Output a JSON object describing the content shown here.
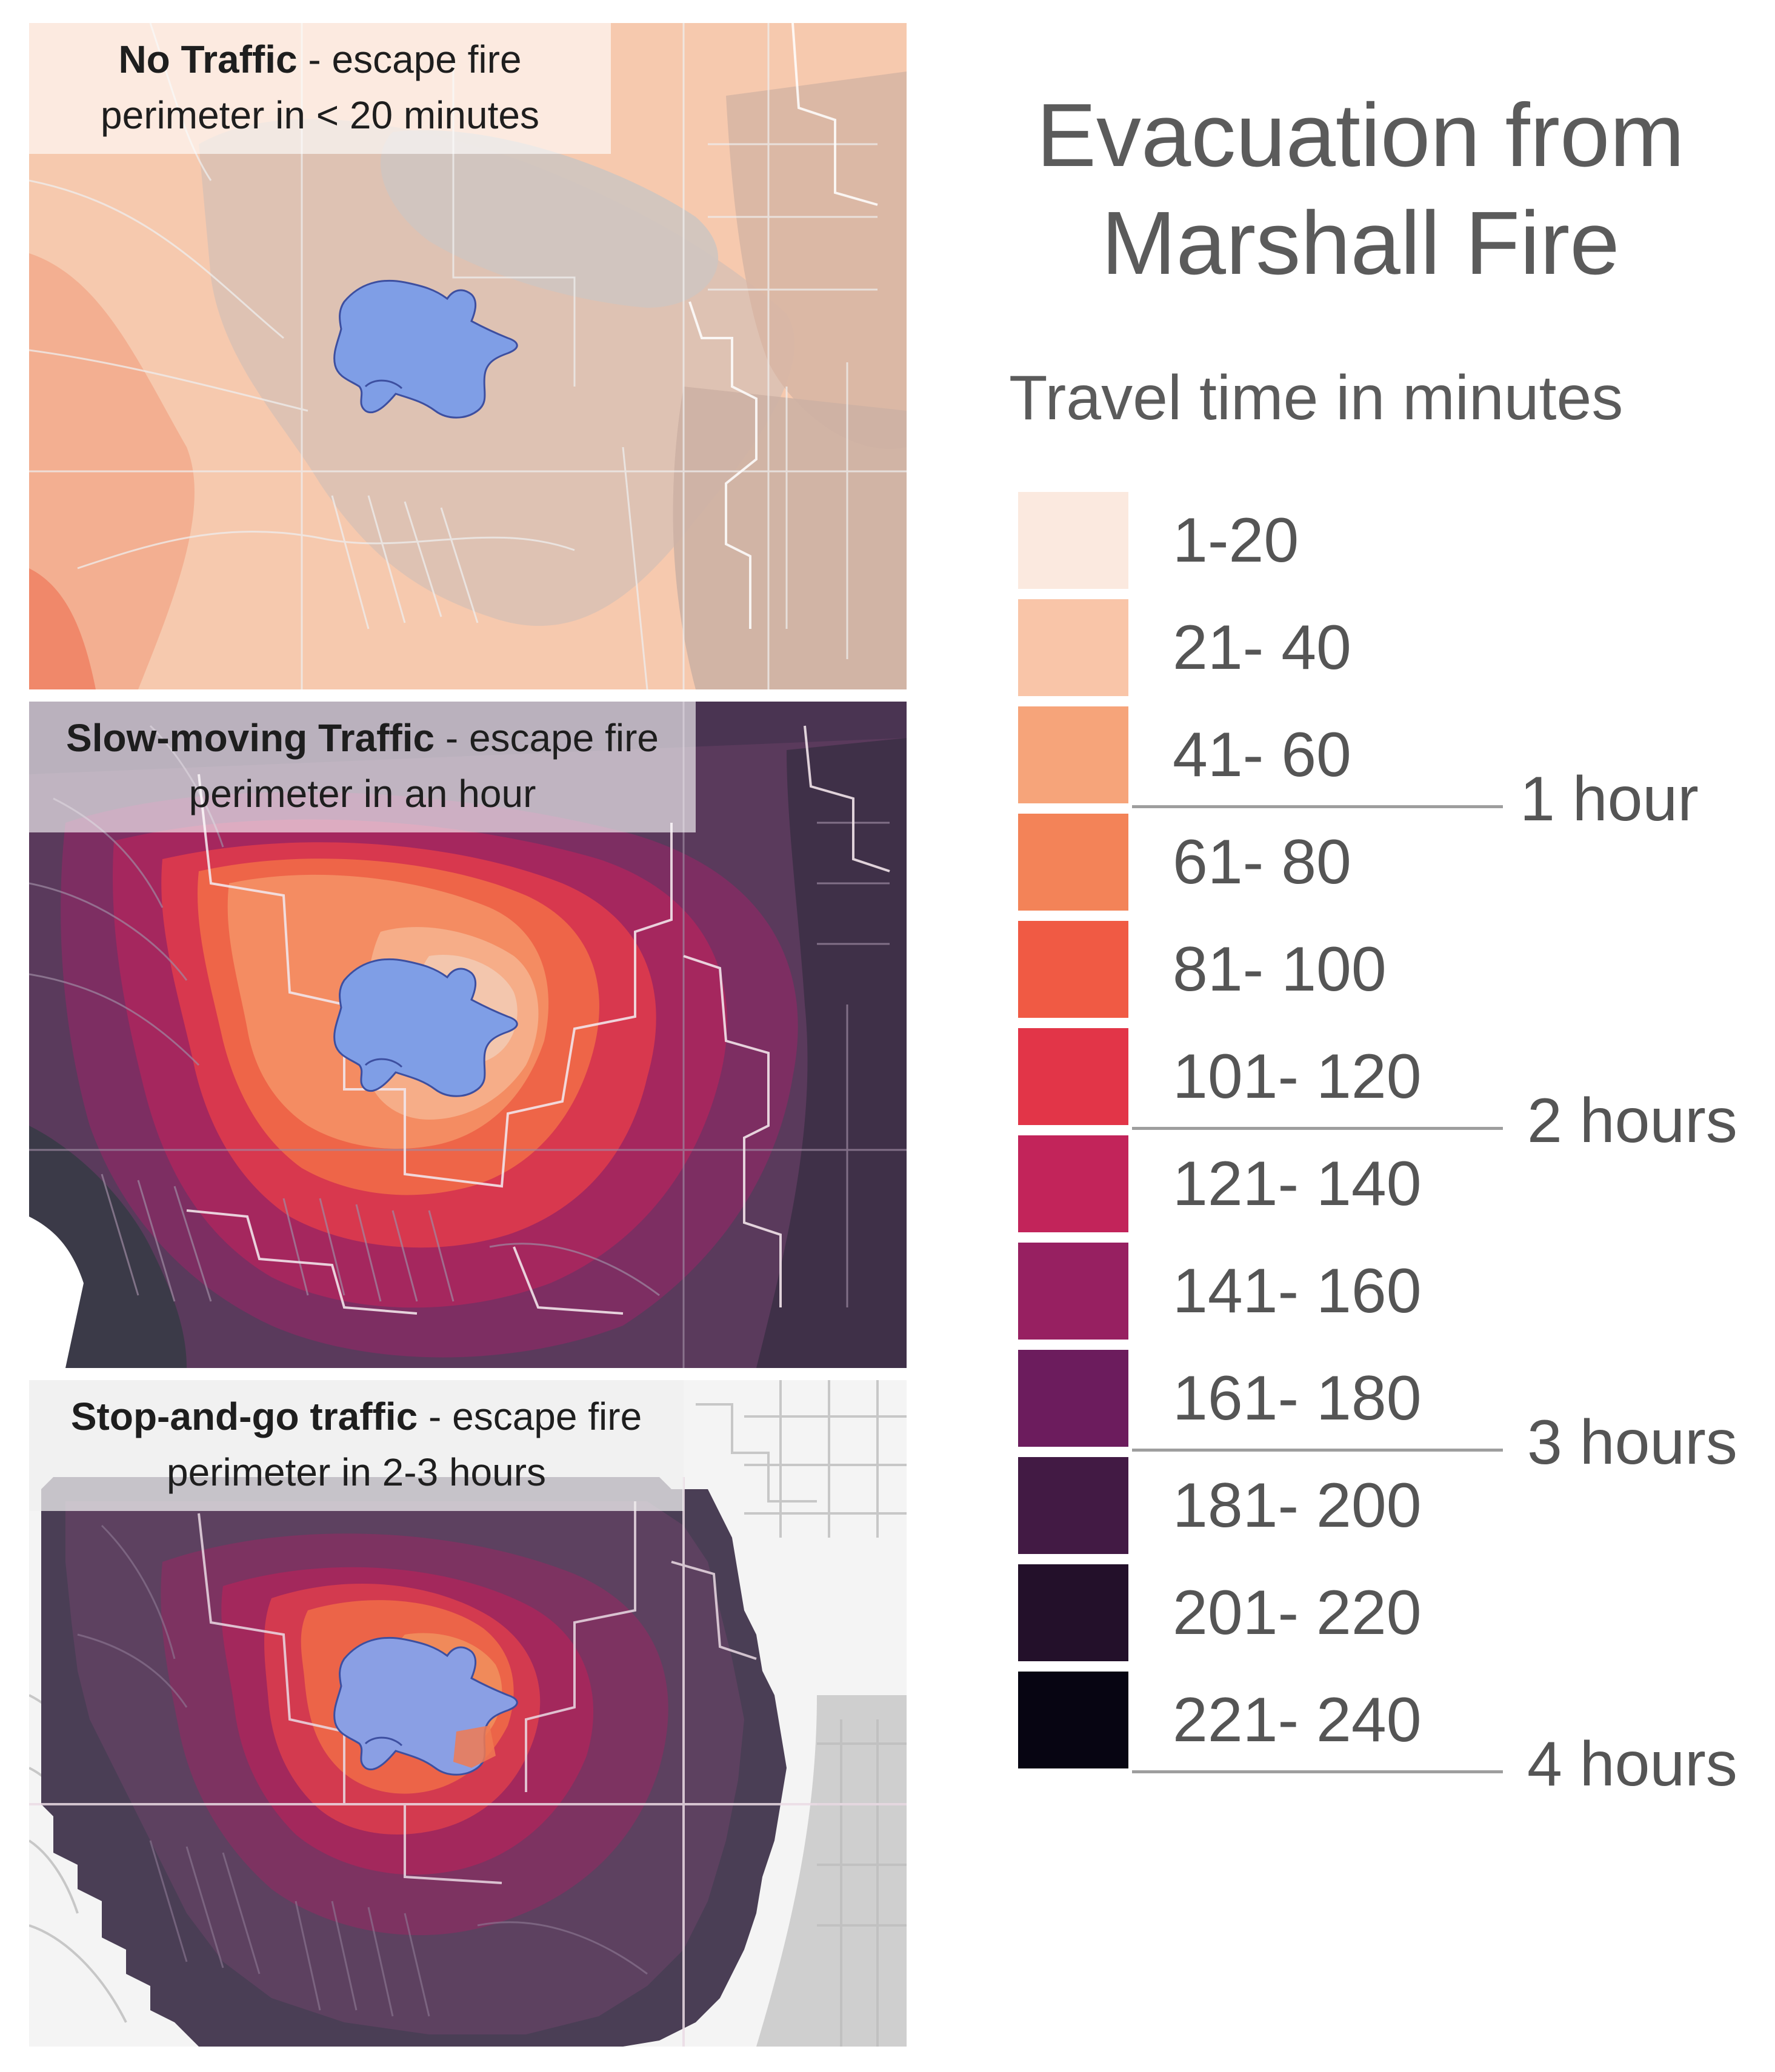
{
  "title": "Evacuation from Marshall Fire",
  "legend": {
    "title": "Travel time in minutes",
    "items": [
      {
        "label": "1-20",
        "color": "#fbe9df"
      },
      {
        "label": "21- 40",
        "color": "#f9c5a8"
      },
      {
        "label": "41- 60",
        "color": "#f6a47a"
      },
      {
        "label": "61- 80",
        "color": "#f38358"
      },
      {
        "label": "81- 100",
        "color": "#f05a44"
      },
      {
        "label": "101- 120",
        "color": "#e23548"
      },
      {
        "label": "121- 140",
        "color": "#c2245a"
      },
      {
        "label": "141- 160",
        "color": "#972061"
      },
      {
        "label": "161- 180",
        "color": "#6c1c5d"
      },
      {
        "label": "181- 200",
        "color": "#421a44"
      },
      {
        "label": "201- 220",
        "color": "#23102a"
      },
      {
        "label": "221- 240",
        "color": "#070512"
      }
    ],
    "hour_marks": [
      {
        "label": "1 hour",
        "after_minutes": 60
      },
      {
        "label": "2 hours",
        "after_minutes": 120
      },
      {
        "label": "3 hours",
        "after_minutes": 180
      },
      {
        "label": "4 hours",
        "after_minutes": 240
      }
    ]
  },
  "panels": [
    {
      "name": "No Traffic",
      "caption_bold": "No Traffic",
      "caption_rest": " - escape fire perimeter in < 20 minutes"
    },
    {
      "name": "Slow-moving Traffic",
      "caption_bold": "Slow-moving Traffic",
      "caption_rest": " - escape fire perimeter in an hour"
    },
    {
      "name": "Stop-and-go traffic",
      "caption_bold": "Stop-and-go traffic",
      "caption_rest": " - escape fire perimeter in 2-3 hours"
    }
  ],
  "colors": {
    "fire_perimeter": "#7f9ee6",
    "fire_outline": "#3d4fa0",
    "roads": "#e6e6e6",
    "boundaries": "#ffffff"
  }
}
